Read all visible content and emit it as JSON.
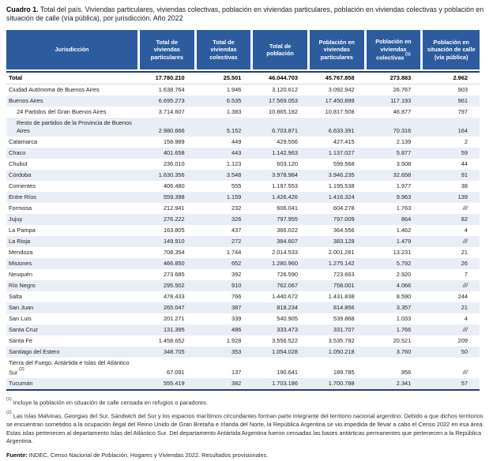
{
  "title": {
    "label": "Cuadro 1.",
    "text": "Total del país. Viviendas particulares, viviendas colectivas, población en viviendas particulares, población en viviendas colectivas y población en situación de calle (vía pública), por jurisdicción. Año 2022"
  },
  "colors": {
    "header_bg": "#2d5c9e",
    "stripe_bg": "#e9eef6",
    "rule": "#24406b"
  },
  "table": {
    "columns": [
      {
        "label": "Jurisdicción"
      },
      {
        "label": "Total de viviendas particulares"
      },
      {
        "label": "Total de viviendas colectivas"
      },
      {
        "label": "Total de población"
      },
      {
        "label": "Población en viviendas particulares"
      },
      {
        "label": "Población en viviendas colectivas",
        "sup": "(1)"
      },
      {
        "label": "Población en situación de calle (vía pública)"
      }
    ],
    "rows": [
      {
        "name": "Total",
        "bold": true,
        "values": [
          "17.780.210",
          "25.501",
          "46.044.703",
          "45.767.858",
          "273.883",
          "2.962"
        ]
      },
      {
        "name": "Ciudad Autónoma de Buenos Aires",
        "values": [
          "1.638.764",
          "1.946",
          "3.120.612",
          "3.092.942",
          "26.767",
          "903"
        ]
      },
      {
        "name": "Buenos Aires",
        "stripe": true,
        "values": [
          "6.695.273",
          "6.535",
          "17.569.053",
          "17.450.899",
          "117.193",
          "961"
        ]
      },
      {
        "name": "24 Partidos del Gran Buenos Aires",
        "indent": true,
        "values": [
          "3.714.607",
          "1.383",
          "10.865.182",
          "10.817.508",
          "46.877",
          "797"
        ]
      },
      {
        "name": "Resto de partidos de la Provincia de Buenos Aires",
        "indent": true,
        "stripe": true,
        "values": [
          "2.980.666",
          "5.152",
          "6.703.871",
          "6.633.391",
          "70.316",
          "164"
        ]
      },
      {
        "name": "Catamarca",
        "values": [
          "158.989",
          "449",
          "429.556",
          "427.415",
          "2.139",
          "2"
        ]
      },
      {
        "name": "Chaco",
        "stripe": true,
        "values": [
          "401.658",
          "443",
          "1.142.963",
          "1.137.027",
          "5.877",
          "59"
        ]
      },
      {
        "name": "Chubut",
        "values": [
          "236.010",
          "1.123",
          "603.120",
          "599.568",
          "3.508",
          "44"
        ]
      },
      {
        "name": "Córdoba",
        "stripe": true,
        "values": [
          "1.630.356",
          "3.548",
          "3.978.984",
          "3.946.235",
          "32.658",
          "91"
        ]
      },
      {
        "name": "Corrientes",
        "values": [
          "406.480",
          "555",
          "1.197.553",
          "1.195.538",
          "1.977",
          "38"
        ]
      },
      {
        "name": "Entre Ríos",
        "stripe": true,
        "values": [
          "559.398",
          "1.159",
          "1.426.426",
          "1.416.324",
          "9.963",
          "139"
        ]
      },
      {
        "name": "Formosa",
        "values": [
          "212.941",
          "232",
          "606.041",
          "604.278",
          "1.763",
          "///"
        ]
      },
      {
        "name": "Jujuy",
        "stripe": true,
        "values": [
          "276.222",
          "326",
          "797.955",
          "797.009",
          "864",
          "82"
        ]
      },
      {
        "name": "La Pampa",
        "values": [
          "163.805",
          "437",
          "366.022",
          "364.556",
          "1.462",
          "4"
        ]
      },
      {
        "name": "La Rioja",
        "stripe": true,
        "values": [
          "149.910",
          "272",
          "384.607",
          "383.128",
          "1.479",
          "///"
        ]
      },
      {
        "name": "Mendoza",
        "values": [
          "708.354",
          "1.744",
          "2.014.533",
          "2.001.281",
          "13.231",
          "21"
        ]
      },
      {
        "name": "Misiones",
        "stripe": true,
        "values": [
          "466.850",
          "652",
          "1.280.960",
          "1.275.142",
          "5.792",
          "26"
        ]
      },
      {
        "name": "Neuquén",
        "values": [
          "273.685",
          "392",
          "726.590",
          "723.663",
          "2.920",
          "7"
        ]
      },
      {
        "name": "Río Negro",
        "stripe": true,
        "values": [
          "295.502",
          "910",
          "762.067",
          "758.001",
          "4.066",
          "///"
        ]
      },
      {
        "name": "Salta",
        "values": [
          "478.433",
          "766",
          "1.440.672",
          "1.431.838",
          "8.590",
          "244"
        ]
      },
      {
        "name": "San Juan",
        "stripe": true,
        "values": [
          "265.047",
          "387",
          "818.234",
          "814.856",
          "3.357",
          "21"
        ]
      },
      {
        "name": "San Luis",
        "values": [
          "201.271",
          "339",
          "540.905",
          "539.868",
          "1.033",
          "4"
        ]
      },
      {
        "name": "Santa Cruz",
        "stripe": true,
        "values": [
          "131.395",
          "486",
          "333.473",
          "331.707",
          "1.766",
          "///"
        ]
      },
      {
        "name": "Santa Fe",
        "values": [
          "1.458.652",
          "1.928",
          "3.556.522",
          "3.535.792",
          "20.521",
          "209"
        ]
      },
      {
        "name": "Santiago del Estero",
        "stripe": true,
        "values": [
          "348.705",
          "353",
          "1.054.028",
          "1.050.218",
          "3.760",
          "50"
        ]
      },
      {
        "name": "Tierra del Fuego, Antártida e Islas del Atlántico Sur",
        "sup": "(2)",
        "values": [
          "67.091",
          "137",
          "190.641",
          "189.785",
          "856",
          "///"
        ]
      },
      {
        "name": "Tucumán",
        "stripe": true,
        "last": true,
        "values": [
          "555.419",
          "382",
          "1.703.186",
          "1.700.788",
          "2.341",
          "57"
        ]
      }
    ]
  },
  "footnotes": [
    {
      "marker": "(1)",
      "text": "Incluye la población en situación de calle censada en refugios o paradores."
    },
    {
      "marker": "(2)",
      "text": "Las Islas Malvinas, Georgias del Sur, Sándwich del Sur y los espacios marítimos circundantes forman parte integrante del territorio nacional argentino. Debido a que dichos territorios se encuentran sometidos a la ocupación ilegal del Reino Unido de Gran Bretaña e Irlanda del Norte, la República Argentina se vio impedida de llevar a cabo el Censo 2022 en esa área. Estas islas pertenecen al departamento Islas del Atlántico Sur. Del departamento Antártida Argentina fueron censadas las bases antárticas permanentes que pertenecen a la República Argentina."
    }
  ],
  "source": {
    "label": "Fuente:",
    "text": "INDEC, Censo Nacional de Población, Hogares y Viviendas 2022. Resultados provisionales."
  }
}
